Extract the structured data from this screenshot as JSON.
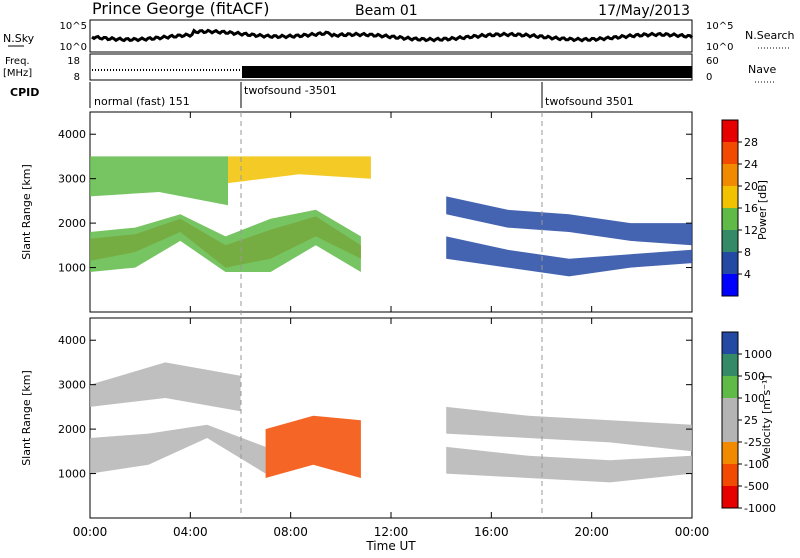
{
  "header": {
    "station": "Prince George (fitACF)",
    "beam": "Beam 01",
    "date": "17/May/2013"
  },
  "noise_panel": {
    "left_label": "N.Sky",
    "left_ticks": [
      "10^5",
      "10^0"
    ],
    "right_label": "N.Search",
    "right_ticks": [
      "10^5",
      "10^0"
    ]
  },
  "freq_panel": {
    "left_label_1": "Freq.",
    "left_label_2": "[MHz]",
    "left_ticks": [
      "18",
      "8"
    ],
    "right_label": "Nave",
    "right_ticks": [
      "60",
      "0"
    ]
  },
  "cpid": {
    "label": "CPID",
    "segments": [
      {
        "start_hour": 0,
        "name": "normal (fast) 151"
      },
      {
        "start_hour": 6,
        "name": "twofsound -3501"
      },
      {
        "start_hour": 18,
        "name": "twofsound 3501"
      }
    ]
  },
  "x_axis": {
    "label": "Time UT",
    "ticks": [
      "00:00",
      "04:00",
      "08:00",
      "12:00",
      "16:00",
      "20:00",
      "00:00"
    ],
    "range_hours": [
      0,
      24
    ]
  },
  "colors": {
    "power": [
      "#0000ff",
      "#2349a3",
      "#348a66",
      "#5fba48",
      "#f2c200",
      "#f28a00",
      "#f24a00",
      "#e60000"
    ],
    "velocity": [
      "#e60000",
      "#f24a00",
      "#f28a00",
      "#b4b4b4",
      "#b4b4b4",
      "#5fba48",
      "#348a66",
      "#2349a3"
    ]
  },
  "chart_data": [
    {
      "type": "heatmap",
      "ylabel": "Slant Range [km]",
      "ylim": [
        0,
        4500
      ],
      "y_ticks": [
        "1000",
        "2000",
        "3000",
        "4000"
      ],
      "colorbar_label": "Power [dB]",
      "colorbar_ticks": [
        "4",
        "8",
        "12",
        "16",
        "20",
        "24",
        "28"
      ],
      "bands": [
        {
          "from": 0,
          "to": 10.8,
          "ranges": [
            [
              1150,
              1650
            ],
            [
              1350,
              1750
            ],
            [
              1800,
              2100
            ],
            [
              1000,
              1500
            ],
            [
              1200,
              1850
            ],
            [
              1700,
              2150
            ],
            [
              1200,
              1500
            ]
          ],
          "level": 6
        },
        {
          "from": 0,
          "to": 10.8,
          "ranges": [
            [
              900,
              1800
            ],
            [
              1000,
              1900
            ],
            [
              1600,
              2200
            ],
            [
              900,
              1700
            ],
            [
              900,
              2100
            ],
            [
              1500,
              2300
            ],
            [
              900,
              1700
            ]
          ],
          "level": 3
        },
        {
          "from": 0,
          "to": 5.5,
          "ranges": [
            [
              2600,
              3500
            ],
            [
              2700,
              3500
            ],
            [
              2400,
              3500
            ]
          ],
          "level": 3
        },
        {
          "from": 5.5,
          "to": 11.2,
          "ranges": [
            [
              2900,
              3500
            ],
            [
              3100,
              3500
            ],
            [
              3000,
              3500
            ]
          ],
          "level": 4
        },
        {
          "from": 14.2,
          "to": 24,
          "ranges": [
            [
              2200,
              2600
            ],
            [
              1900,
              2300
            ],
            [
              1800,
              2200
            ],
            [
              1600,
              2000
            ],
            [
              1500,
              2000
            ]
          ],
          "level": 1
        },
        {
          "from": 14.2,
          "to": 24,
          "ranges": [
            [
              1200,
              1700
            ],
            [
              1000,
              1400
            ],
            [
              800,
              1200
            ],
            [
              1000,
              1300
            ],
            [
              1100,
              1400
            ]
          ],
          "level": 1
        }
      ]
    },
    {
      "type": "heatmap",
      "ylabel": "Slant Range [km]",
      "ylim": [
        0,
        4500
      ],
      "y_ticks": [
        "1000",
        "2000",
        "3000",
        "4000"
      ],
      "colorbar_label": "Velocity [m s⁻¹]",
      "colorbar_ticks": [
        "1000",
        "500",
        "100",
        "25",
        "-25",
        "-100",
        "-500",
        "-1000"
      ],
      "bands": [
        {
          "from": 0,
          "to": 7.0,
          "ranges": [
            [
              1000,
              1800
            ],
            [
              1200,
              1900
            ],
            [
              1800,
              2100
            ],
            [
              1000,
              1600
            ]
          ],
          "level": 3
        },
        {
          "from": 7.0,
          "to": 10.8,
          "ranges": [
            [
              900,
              2000
            ],
            [
              1200,
              2300
            ],
            [
              900,
              2200
            ]
          ],
          "level": 1
        },
        {
          "from": 0,
          "to": 6.0,
          "ranges": [
            [
              2500,
              3000
            ],
            [
              2700,
              3500
            ],
            [
              2400,
              3200
            ]
          ],
          "level": 3
        },
        {
          "from": 14.2,
          "to": 24,
          "ranges": [
            [
              1900,
              2500
            ],
            [
              1800,
              2300
            ],
            [
              1700,
              2200
            ],
            [
              1500,
              2100
            ]
          ],
          "level": 3
        },
        {
          "from": 14.2,
          "to": 24,
          "ranges": [
            [
              1000,
              1600
            ],
            [
              900,
              1400
            ],
            [
              800,
              1300
            ],
            [
              1000,
              1400
            ]
          ],
          "level": 3
        }
      ]
    }
  ]
}
